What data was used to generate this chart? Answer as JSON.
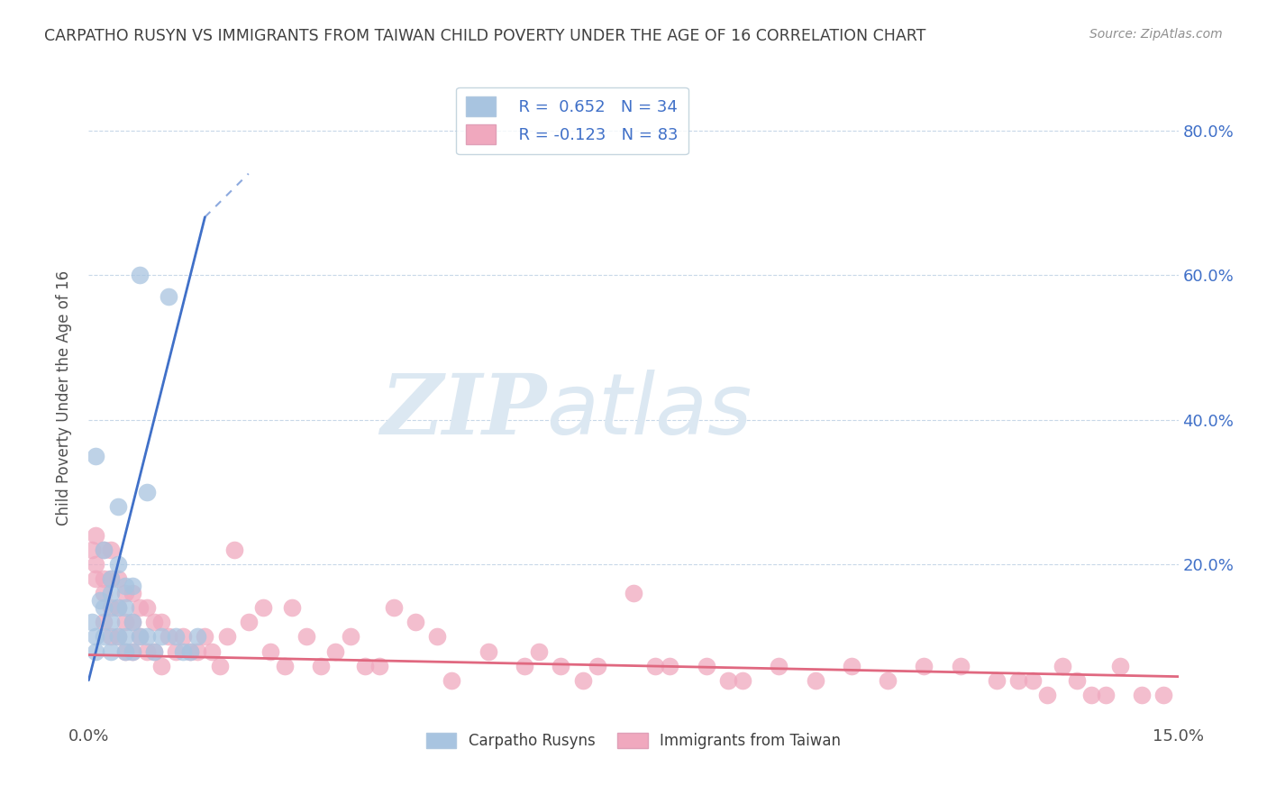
{
  "title": "CARPATHO RUSYN VS IMMIGRANTS FROM TAIWAN CHILD POVERTY UNDER THE AGE OF 16 CORRELATION CHART",
  "source": "Source: ZipAtlas.com",
  "ylabel": "Child Poverty Under the Age of 16",
  "xlim": [
    0.0,
    0.15
  ],
  "ylim": [
    -0.02,
    0.88
  ],
  "yticks": [
    0.0,
    0.2,
    0.4,
    0.6,
    0.8
  ],
  "ytick_labels": [
    "20.0%",
    "40.0%",
    "60.0%",
    "80.0%"
  ],
  "xticks": [
    0.0,
    0.15
  ],
  "xtick_labels": [
    "0.0%",
    "15.0%"
  ],
  "legend_r1": "R =  0.652   N = 34",
  "legend_r2": "R = -0.123   N = 83",
  "color_blue": "#a8c4e0",
  "color_pink": "#f0a8be",
  "line_blue": "#4070c8",
  "line_pink": "#e06880",
  "watermark_zip": "ZIP",
  "watermark_atlas": "atlas",
  "watermark_color": "#dce8f2",
  "blue_scatter_x": [
    0.0005,
    0.001,
    0.001,
    0.001,
    0.0015,
    0.002,
    0.002,
    0.002,
    0.003,
    0.003,
    0.003,
    0.003,
    0.004,
    0.004,
    0.004,
    0.004,
    0.005,
    0.005,
    0.005,
    0.005,
    0.006,
    0.006,
    0.006,
    0.007,
    0.007,
    0.008,
    0.008,
    0.009,
    0.01,
    0.011,
    0.012,
    0.013,
    0.014,
    0.015
  ],
  "blue_scatter_y": [
    0.12,
    0.35,
    0.1,
    0.08,
    0.15,
    0.22,
    0.14,
    0.1,
    0.18,
    0.16,
    0.12,
    0.08,
    0.28,
    0.2,
    0.14,
    0.1,
    0.17,
    0.14,
    0.1,
    0.08,
    0.17,
    0.12,
    0.08,
    0.6,
    0.1,
    0.3,
    0.1,
    0.08,
    0.1,
    0.57,
    0.1,
    0.08,
    0.08,
    0.1
  ],
  "pink_scatter_x": [
    0.0005,
    0.001,
    0.001,
    0.001,
    0.002,
    0.002,
    0.002,
    0.002,
    0.003,
    0.003,
    0.003,
    0.003,
    0.004,
    0.004,
    0.004,
    0.005,
    0.005,
    0.005,
    0.006,
    0.006,
    0.006,
    0.007,
    0.007,
    0.008,
    0.008,
    0.009,
    0.009,
    0.01,
    0.01,
    0.011,
    0.012,
    0.013,
    0.014,
    0.015,
    0.016,
    0.017,
    0.018,
    0.019,
    0.02,
    0.022,
    0.024,
    0.025,
    0.027,
    0.028,
    0.03,
    0.032,
    0.034,
    0.036,
    0.038,
    0.04,
    0.042,
    0.045,
    0.048,
    0.05,
    0.055,
    0.06,
    0.062,
    0.065,
    0.068,
    0.07,
    0.075,
    0.078,
    0.08,
    0.085,
    0.088,
    0.09,
    0.095,
    0.1,
    0.105,
    0.11,
    0.115,
    0.12,
    0.125,
    0.128,
    0.13,
    0.132,
    0.134,
    0.136,
    0.138,
    0.14,
    0.142,
    0.145,
    0.148
  ],
  "pink_scatter_y": [
    0.22,
    0.24,
    0.2,
    0.18,
    0.22,
    0.18,
    0.16,
    0.12,
    0.22,
    0.18,
    0.14,
    0.1,
    0.18,
    0.14,
    0.1,
    0.16,
    0.12,
    0.08,
    0.16,
    0.12,
    0.08,
    0.14,
    0.1,
    0.14,
    0.08,
    0.12,
    0.08,
    0.12,
    0.06,
    0.1,
    0.08,
    0.1,
    0.08,
    0.08,
    0.1,
    0.08,
    0.06,
    0.1,
    0.22,
    0.12,
    0.14,
    0.08,
    0.06,
    0.14,
    0.1,
    0.06,
    0.08,
    0.1,
    0.06,
    0.06,
    0.14,
    0.12,
    0.1,
    0.04,
    0.08,
    0.06,
    0.08,
    0.06,
    0.04,
    0.06,
    0.16,
    0.06,
    0.06,
    0.06,
    0.04,
    0.04,
    0.06,
    0.04,
    0.06,
    0.04,
    0.06,
    0.06,
    0.04,
    0.04,
    0.04,
    0.02,
    0.06,
    0.04,
    0.02,
    0.02,
    0.06,
    0.02,
    0.02
  ],
  "blue_line_x0": 0.0,
  "blue_line_y0": 0.04,
  "blue_line_x1": 0.016,
  "blue_line_y1": 0.68,
  "blue_line_dash_x1": 0.022,
  "blue_line_dash_y1": 0.74,
  "pink_line_x0": 0.0,
  "pink_line_y0": 0.075,
  "pink_line_x1": 0.15,
  "pink_line_y1": 0.045
}
